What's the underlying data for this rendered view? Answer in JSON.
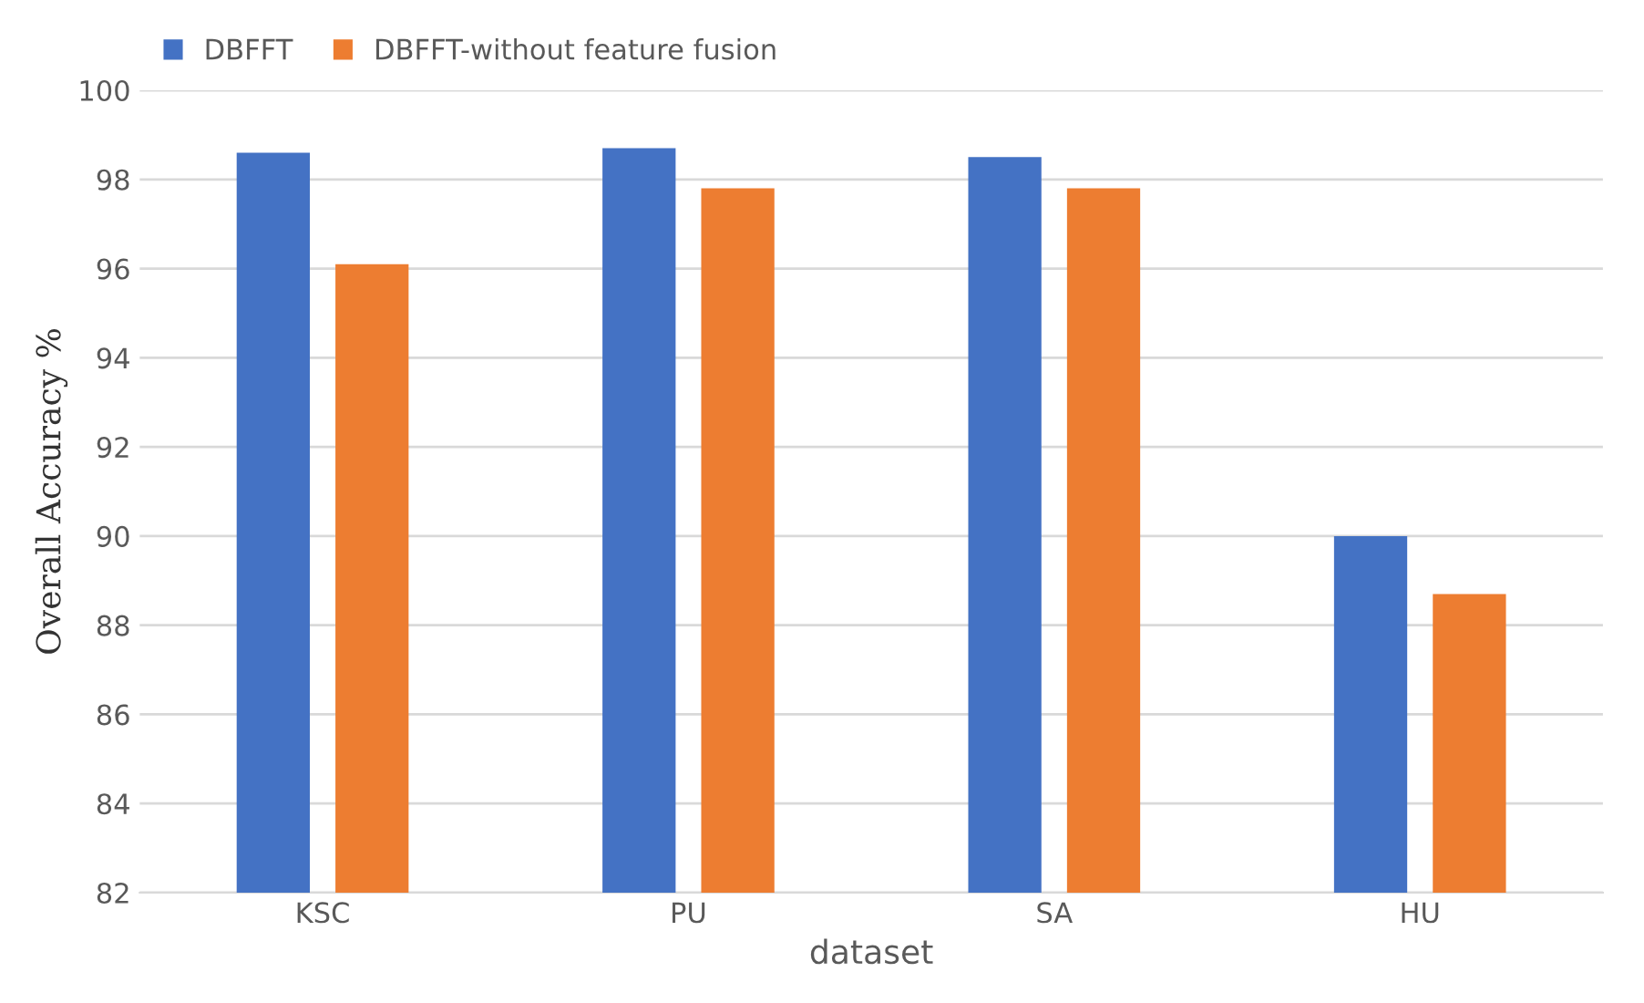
{
  "chart_data": {
    "type": "bar",
    "xlabel": "dataset",
    "ylabel": "Overall Accuracy %",
    "categories": [
      "KSC",
      "PU",
      "SA",
      "HU"
    ],
    "series": [
      {
        "name": "DBFFT",
        "color": "#4472c4",
        "values": [
          98.6,
          98.7,
          98.5,
          90.0
        ]
      },
      {
        "name": "DBFFT-without feature fusion",
        "color": "#ed7d31",
        "values": [
          96.1,
          97.8,
          97.8,
          88.7
        ]
      }
    ],
    "ylim": [
      82,
      100
    ],
    "yticks": [
      82,
      84,
      86,
      88,
      90,
      92,
      94,
      96,
      98,
      100
    ],
    "grid": "y",
    "legend": "top left"
  }
}
